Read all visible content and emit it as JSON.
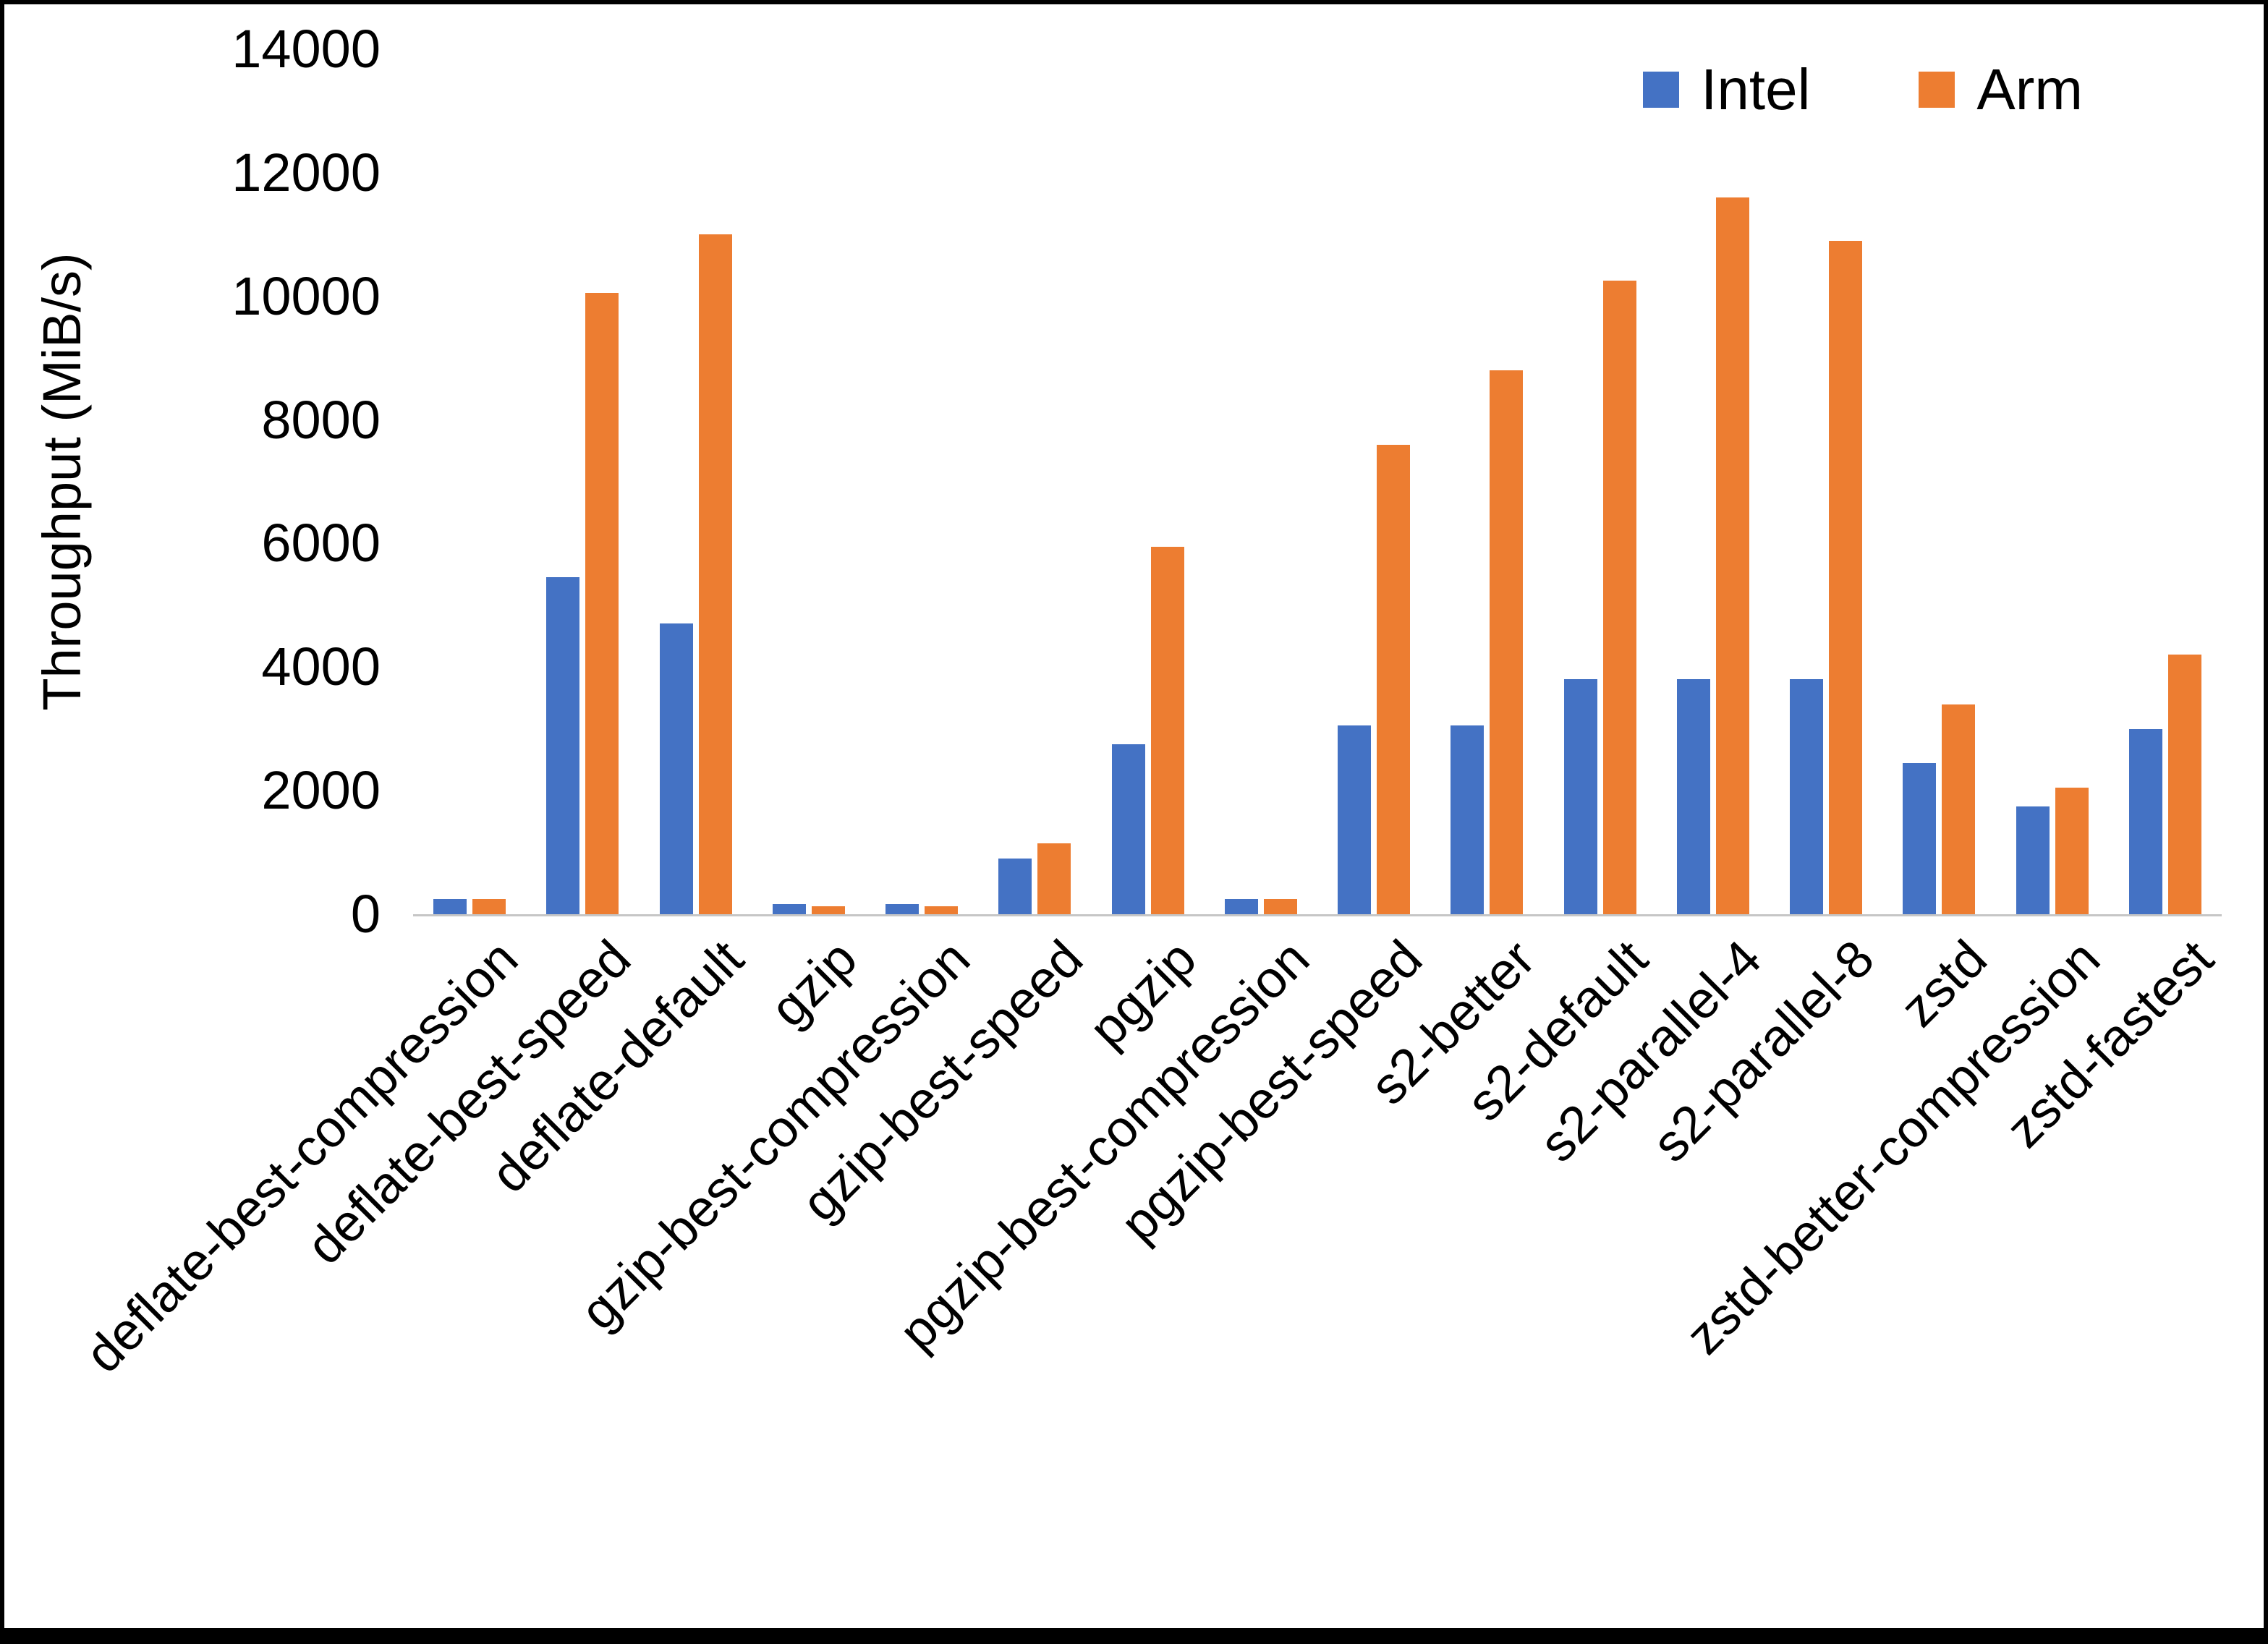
{
  "chart_data": {
    "type": "bar",
    "title": "",
    "xlabel": "",
    "ylabel": "Throughput (MiB/s)",
    "ylim": [
      0,
      14000
    ],
    "ytick_step": 2000,
    "grid": false,
    "legend_position": "top-right",
    "categories": [
      "deflate-best-compression",
      "deflate-best-speed",
      "deflate-default",
      "gzip",
      "gzip-best-compression",
      "gzip-best-speed",
      "pgzip",
      "pgzip-best-compression",
      "pgzip-best-speed",
      "s2-better",
      "s2-default",
      "s2-parallel-4",
      "s2-parallel-8",
      "zstd",
      "zstd-better-compression",
      "zstd-fastest"
    ],
    "series": [
      {
        "name": "Intel",
        "color": "#4472C4",
        "values": [
          250,
          5450,
          4700,
          160,
          160,
          900,
          2750,
          250,
          3050,
          3050,
          3800,
          3800,
          3800,
          2450,
          1750,
          3000
        ]
      },
      {
        "name": "Arm",
        "color": "#ED7D31",
        "values": [
          250,
          10050,
          11000,
          130,
          130,
          1150,
          5950,
          250,
          7600,
          8800,
          10250,
          11600,
          10900,
          3400,
          2050,
          4200
        ]
      }
    ]
  }
}
